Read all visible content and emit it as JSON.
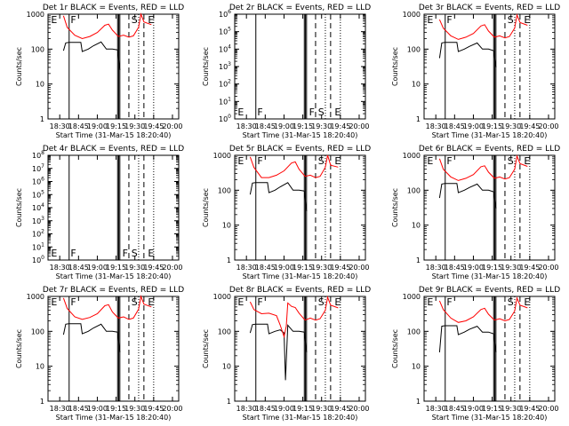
{
  "figure": {
    "xtick_labels": [
      "18:30",
      "18:45",
      "19:00",
      "19:15",
      "19:30",
      "19:45",
      "20:00"
    ],
    "xlabel": "Start Time (31-Mar-15 18:20:40)",
    "ylabel": "Counts/sec",
    "series_names": [
      "Events",
      "LLD"
    ],
    "series_colors": [
      "#000000",
      "#ff0000"
    ]
  },
  "chart_data": [
    {
      "type": "line",
      "title": "Det 1r BLACK = Events, RED = LLD",
      "scale": "log",
      "ylim": [
        1,
        1000
      ],
      "ytick_labels": [
        "1",
        "10",
        "100",
        "1000"
      ],
      "markers": [
        "E",
        "F",
        "S",
        "E"
      ],
      "series": [
        {
          "name": "Events",
          "color": "#000000",
          "x": [
            18.55,
            18.58,
            18.62,
            18.7,
            18.78,
            18.8,
            18.88,
            18.95,
            19.05,
            19.12,
            19.2,
            19.27,
            19.3
          ],
          "y": [
            90,
            150,
            155,
            155,
            155,
            85,
            100,
            125,
            160,
            100,
            100,
            95,
            25
          ]
        },
        {
          "name": "LLD",
          "color": "#ff0000",
          "x": [
            18.55,
            18.6,
            18.7,
            18.8,
            18.9,
            19.0,
            19.1,
            19.15,
            19.2,
            19.28,
            19.35,
            19.42,
            19.48,
            19.55,
            19.58,
            19.62,
            19.72
          ],
          "y": [
            900,
            420,
            250,
            200,
            230,
            300,
            480,
            520,
            350,
            230,
            250,
            220,
            240,
            420,
            1000,
            600,
            500
          ]
        }
      ]
    },
    {
      "type": "line",
      "title": "Det 2r BLACK = Events, RED = LLD",
      "scale": "log",
      "ylim": [
        1,
        1000000
      ],
      "ytick_labels": [
        "10^0",
        "10^1",
        "10^2",
        "10^3",
        "10^4",
        "10^5",
        "10^6"
      ],
      "markers": [
        "E",
        "F",
        "F",
        "S",
        "E"
      ],
      "series": []
    },
    {
      "type": "line",
      "title": "Det 3r BLACK = Events, RED = LLD",
      "scale": "log",
      "ylim": [
        1,
        1000
      ],
      "ytick_labels": [
        "1",
        "10",
        "100",
        "1000"
      ],
      "markers": [
        "E",
        "F",
        "S",
        "E"
      ],
      "series": [
        {
          "name": "Events",
          "color": "#000000",
          "x": [
            18.55,
            18.58,
            18.62,
            18.7,
            18.78,
            18.8,
            18.88,
            18.95,
            19.05,
            19.12,
            19.2,
            19.27,
            19.3
          ],
          "y": [
            55,
            150,
            155,
            155,
            155,
            85,
            100,
            120,
            150,
            100,
            100,
            90,
            30
          ]
        },
        {
          "name": "LLD",
          "color": "#ff0000",
          "x": [
            18.55,
            18.6,
            18.7,
            18.8,
            18.9,
            19.0,
            19.1,
            19.15,
            19.2,
            19.28,
            19.35,
            19.42,
            19.48,
            19.55,
            19.58,
            19.62,
            19.72
          ],
          "y": [
            700,
            400,
            240,
            190,
            220,
            280,
            460,
            500,
            330,
            220,
            240,
            210,
            230,
            400,
            950,
            580,
            480
          ]
        }
      ]
    },
    {
      "type": "line",
      "title": "Det 4r BLACK = Events, RED = LLD",
      "scale": "log",
      "ylim": [
        1,
        100000000
      ],
      "ytick_labels": [
        "10^0",
        "10^1",
        "10^2",
        "10^3",
        "10^4",
        "10^5",
        "10^6",
        "10^7",
        "10^8"
      ],
      "markers": [
        "E",
        "F",
        "F",
        "S",
        "E"
      ],
      "series": []
    },
    {
      "type": "line",
      "title": "Det 5r BLACK = Events, RED = LLD",
      "scale": "log",
      "ylim": [
        1,
        1000
      ],
      "ytick_labels": [
        "1",
        "10",
        "100",
        "1000"
      ],
      "markers": [
        "E",
        "F",
        "S",
        "E"
      ],
      "series": [
        {
          "name": "Events",
          "color": "#000000",
          "x": [
            18.55,
            18.58,
            18.62,
            18.7,
            18.78,
            18.8,
            18.88,
            18.95,
            19.05,
            19.12,
            19.2,
            19.27,
            19.3
          ],
          "y": [
            75,
            160,
            165,
            165,
            165,
            85,
            100,
            125,
            165,
            100,
            100,
            95,
            25
          ]
        },
        {
          "name": "LLD",
          "color": "#ff0000",
          "x": [
            18.55,
            18.6,
            18.7,
            18.8,
            18.9,
            19.0,
            19.1,
            19.15,
            19.2,
            19.28,
            19.35,
            19.42,
            19.48,
            19.55,
            19.58,
            19.62,
            19.72
          ],
          "y": [
            900,
            450,
            230,
            230,
            270,
            360,
            600,
            650,
            400,
            250,
            270,
            230,
            250,
            450,
            1000,
            520,
            460
          ]
        }
      ]
    },
    {
      "type": "line",
      "title": "Det 6r BLACK = Events, RED = LLD",
      "scale": "log",
      "ylim": [
        1,
        1000
      ],
      "ytick_labels": [
        "1",
        "10",
        "100",
        "1000"
      ],
      "markers": [
        "E",
        "F",
        "S",
        "E"
      ],
      "series": [
        {
          "name": "Events",
          "color": "#000000",
          "x": [
            18.55,
            18.58,
            18.62,
            18.7,
            18.78,
            18.8,
            18.88,
            18.95,
            19.05,
            19.12,
            19.2,
            19.27,
            19.3
          ],
          "y": [
            60,
            150,
            155,
            155,
            155,
            85,
            100,
            120,
            150,
            100,
            100,
            90,
            30
          ]
        },
        {
          "name": "LLD",
          "color": "#ff0000",
          "x": [
            18.55,
            18.6,
            18.7,
            18.8,
            18.9,
            19.0,
            19.1,
            19.15,
            19.2,
            19.28,
            19.35,
            19.42,
            19.48,
            19.55,
            19.58,
            19.62,
            19.72
          ],
          "y": [
            800,
            400,
            240,
            190,
            220,
            280,
            470,
            500,
            330,
            220,
            240,
            210,
            230,
            400,
            950,
            580,
            480
          ]
        }
      ]
    },
    {
      "type": "line",
      "title": "Det 7r BLACK = Events, RED = LLD",
      "scale": "log",
      "ylim": [
        1,
        1000
      ],
      "ytick_labels": [
        "1",
        "10",
        "100",
        "1000"
      ],
      "markers": [
        "E",
        "F",
        "S",
        "E"
      ],
      "series": [
        {
          "name": "Events",
          "color": "#000000",
          "x": [
            18.55,
            18.58,
            18.62,
            18.7,
            18.78,
            18.8,
            18.88,
            18.95,
            19.05,
            19.12,
            19.2,
            19.27,
            19.3
          ],
          "y": [
            80,
            160,
            165,
            165,
            165,
            85,
            100,
            125,
            160,
            100,
            100,
            95,
            25
          ]
        },
        {
          "name": "LLD",
          "color": "#ff0000",
          "x": [
            18.55,
            18.6,
            18.7,
            18.8,
            18.9,
            19.0,
            19.1,
            19.15,
            19.2,
            19.28,
            19.35,
            19.42,
            19.48,
            19.55,
            19.58,
            19.62,
            19.72
          ],
          "y": [
            900,
            450,
            260,
            220,
            250,
            320,
            540,
            580,
            360,
            240,
            260,
            220,
            240,
            430,
            1000,
            600,
            500
          ]
        }
      ]
    },
    {
      "type": "line",
      "title": "Det 8r BLACK = Events, RED = LLD",
      "scale": "log",
      "ylim": [
        1,
        1000
      ],
      "ytick_labels": [
        "1",
        "10",
        "100",
        "1000"
      ],
      "markers": [
        "E",
        "F",
        "S",
        "E"
      ],
      "series": [
        {
          "name": "Events",
          "color": "#000000",
          "x": [
            18.55,
            18.58,
            18.62,
            18.7,
            18.78,
            18.8,
            18.88,
            18.95,
            19.0,
            19.02,
            19.05,
            19.12,
            19.2,
            19.27,
            19.3
          ],
          "y": [
            90,
            155,
            160,
            160,
            160,
            85,
            100,
            110,
            90,
            4,
            150,
            100,
            100,
            95,
            25
          ]
        },
        {
          "name": "LLD",
          "color": "#ff0000",
          "x": [
            18.55,
            18.6,
            18.7,
            18.8,
            18.9,
            18.95,
            19.0,
            19.03,
            19.05,
            19.1,
            19.15,
            19.2,
            19.28,
            19.35,
            19.42,
            19.48,
            19.55,
            19.58,
            19.62,
            19.72
          ],
          "y": [
            700,
            420,
            320,
            330,
            280,
            150,
            70,
            140,
            650,
            520,
            480,
            330,
            210,
            240,
            210,
            230,
            400,
            950,
            560,
            470
          ]
        }
      ]
    },
    {
      "type": "line",
      "title": "Det 9r BLACK = Events, RED = LLD",
      "scale": "log",
      "ylim": [
        1,
        1000
      ],
      "ytick_labels": [
        "1",
        "10",
        "100",
        "1000"
      ],
      "markers": [
        "E",
        "F",
        "S",
        "E"
      ],
      "series": [
        {
          "name": "Events",
          "color": "#000000",
          "x": [
            18.55,
            18.58,
            18.62,
            18.7,
            18.78,
            18.8,
            18.88,
            18.95,
            19.05,
            19.12,
            19.2,
            19.27,
            19.3
          ],
          "y": [
            25,
            140,
            145,
            145,
            145,
            80,
            95,
            115,
            140,
            95,
            95,
            85,
            25
          ]
        },
        {
          "name": "LLD",
          "color": "#ff0000",
          "x": [
            18.55,
            18.6,
            18.7,
            18.8,
            18.9,
            19.0,
            19.1,
            19.15,
            19.2,
            19.28,
            19.35,
            19.42,
            19.48,
            19.55,
            19.58,
            19.62,
            19.72
          ],
          "y": [
            750,
            420,
            240,
            180,
            200,
            260,
            420,
            460,
            310,
            210,
            230,
            200,
            220,
            380,
            900,
            560,
            470
          ]
        }
      ]
    }
  ]
}
